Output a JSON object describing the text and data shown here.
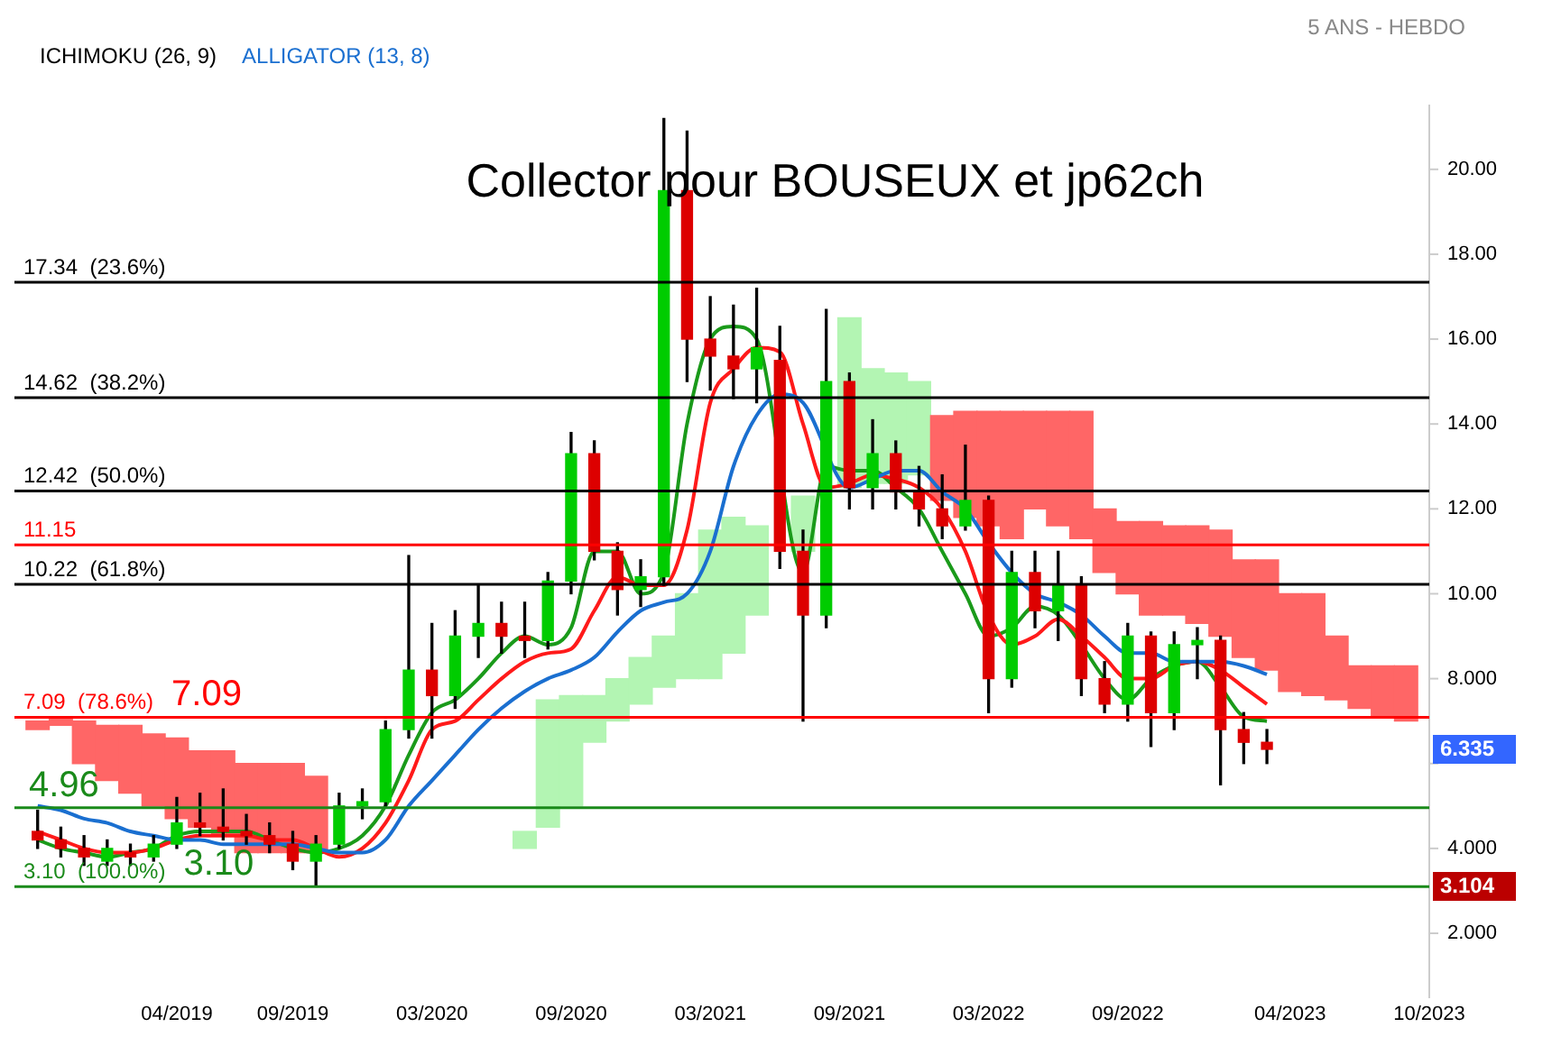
{
  "chart_data": {
    "type": "candlestick",
    "title": "Collector pour BOUSEUX et jp62ch",
    "subtitle": "5 ANS - HEBDO",
    "legend": "top left",
    "marker": "none",
    "annotations": [
      "ICHIMOKU (26, 9)",
      "6.335",
      "3.104",
      {
        "text": "7.09",
        "y": 7.09
      },
      {
        "text": "4.96",
        "y": 4.96
      },
      {
        "text": "3.10",
        "y": 3.1
      }
    ],
    "x": [
      "2018-10",
      "2018-11",
      "2018-12",
      "2019-01",
      "2019-02",
      "2019-03",
      "2019-04",
      "2019-05",
      "2019-06",
      "2019-07",
      "2019-08",
      "2019-09",
      "2019-10",
      "2019-11",
      "2019-12",
      "2020-01",
      "2020-02",
      "2020-03",
      "2020-04",
      "2020-05",
      "2020-06",
      "2020-07",
      "2020-08",
      "2020-09",
      "2020-10",
      "2020-11",
      "2020-12",
      "2021-01",
      "2021-02",
      "2021-03",
      "2021-04",
      "2021-05",
      "2021-06",
      "2021-07",
      "2021-08",
      "2021-09",
      "2021-10",
      "2021-11",
      "2021-12",
      "2022-01",
      "2022-02",
      "2022-03",
      "2022-04",
      "2022-05",
      "2022-06",
      "2022-07",
      "2022-08",
      "2022-09",
      "2022-10",
      "2022-11",
      "2022-12",
      "2023-01",
      "2023-02",
      "2023-03",
      "2023-04",
      "2023-05",
      "2023-06",
      "2023-07",
      "2023-08",
      "2023-09"
    ],
    "ohlc": [
      [
        4.4,
        4.9,
        4.0,
        4.2
      ],
      [
        4.2,
        4.5,
        3.8,
        4.0
      ],
      [
        4.0,
        4.3,
        3.6,
        3.8
      ],
      [
        3.7,
        4.2,
        3.6,
        4.0
      ],
      [
        3.9,
        4.1,
        3.6,
        3.8
      ],
      [
        3.8,
        4.3,
        3.7,
        4.1
      ],
      [
        4.1,
        5.2,
        4.0,
        4.6
      ],
      [
        4.6,
        5.3,
        4.3,
        4.5
      ],
      [
        4.5,
        5.4,
        4.2,
        4.4
      ],
      [
        4.4,
        4.8,
        4.1,
        4.3
      ],
      [
        4.3,
        4.6,
        3.9,
        4.1
      ],
      [
        4.1,
        4.4,
        3.5,
        3.7
      ],
      [
        3.7,
        4.3,
        3.104,
        4.1
      ],
      [
        4.1,
        5.3,
        4.0,
        5.0
      ],
      [
        5.0,
        5.4,
        4.7,
        5.1
      ],
      [
        5.1,
        7.0,
        5.0,
        6.8
      ],
      [
        6.8,
        10.9,
        6.6,
        8.2
      ],
      [
        8.2,
        9.3,
        6.6,
        7.6
      ],
      [
        7.6,
        9.6,
        7.3,
        9.0
      ],
      [
        9.0,
        10.2,
        8.5,
        9.3
      ],
      [
        9.3,
        9.8,
        8.6,
        9.0
      ],
      [
        9.0,
        9.8,
        8.5,
        8.9
      ],
      [
        8.9,
        10.5,
        8.7,
        10.3
      ],
      [
        10.3,
        13.8,
        10.0,
        13.3
      ],
      [
        13.3,
        13.6,
        10.8,
        11.0
      ],
      [
        11.0,
        11.2,
        9.5,
        10.1
      ],
      [
        10.1,
        10.8,
        9.7,
        10.4
      ],
      [
        10.4,
        21.2,
        10.2,
        19.5
      ],
      [
        19.5,
        20.9,
        15.0,
        16.0
      ],
      [
        16.0,
        17.0,
        14.8,
        15.6
      ],
      [
        15.6,
        16.8,
        14.6,
        15.3
      ],
      [
        15.3,
        17.2,
        14.5,
        15.8
      ],
      [
        15.5,
        16.3,
        10.6,
        11.0
      ],
      [
        11.0,
        11.5,
        7.0,
        9.5
      ],
      [
        9.5,
        16.7,
        9.2,
        15.0
      ],
      [
        15.0,
        15.2,
        12.0,
        12.5
      ],
      [
        12.5,
        14.1,
        12.0,
        13.3
      ],
      [
        13.3,
        13.6,
        12.0,
        12.4
      ],
      [
        12.4,
        13.0,
        11.6,
        12.0
      ],
      [
        12.0,
        12.8,
        11.3,
        11.6
      ],
      [
        11.6,
        13.5,
        11.5,
        12.2
      ],
      [
        12.2,
        12.3,
        7.2,
        8.0
      ],
      [
        8.0,
        11.0,
        7.8,
        10.5
      ],
      [
        10.5,
        11.0,
        9.2,
        9.6
      ],
      [
        9.6,
        11.0,
        8.9,
        10.2
      ],
      [
        10.2,
        10.4,
        7.6,
        8.0
      ],
      [
        8.0,
        8.4,
        7.2,
        7.4
      ],
      [
        7.4,
        9.3,
        7.0,
        9.0
      ],
      [
        9.0,
        9.1,
        6.4,
        7.2
      ],
      [
        7.2,
        9.1,
        6.8,
        8.8
      ],
      [
        8.8,
        9.2,
        8.0,
        8.9
      ],
      [
        8.9,
        9.0,
        5.5,
        6.8
      ],
      [
        6.8,
        7.2,
        6.0,
        6.5
      ],
      [
        6.5,
        6.8,
        6.0,
        6.335
      ],
      null,
      null,
      null,
      null,
      null,
      null
    ],
    "series": [
      {
        "type": "bar",
        "color": "#ff6666",
        "base": [
          6.8,
          6.9,
          6.0,
          5.6,
          5.3,
          5.0,
          4.7,
          4.5,
          4.3,
          3.9,
          3.9,
          3.9,
          3.9,
          null,
          null,
          null,
          null,
          null,
          null,
          null,
          null,
          null,
          null,
          null,
          null,
          null,
          null,
          null,
          null,
          null,
          null,
          null,
          null,
          null,
          null,
          null,
          null,
          null,
          null,
          12.2,
          11.8,
          11.6,
          11.3,
          12.0,
          11.6,
          11.3,
          10.5,
          10.0,
          9.5,
          9.5,
          9.3,
          9.0,
          8.5,
          8.2,
          7.7,
          7.6,
          7.5,
          7.3,
          7.1,
          7.0
        ],
        "values": [
          0.2,
          0.2,
          1.0,
          1.3,
          1.6,
          1.7,
          1.9,
          1.8,
          2.0,
          2.1,
          2.1,
          2.1,
          1.8,
          null,
          null,
          null,
          null,
          null,
          null,
          null,
          null,
          null,
          null,
          null,
          null,
          null,
          null,
          null,
          null,
          null,
          null,
          null,
          null,
          null,
          null,
          null,
          null,
          null,
          null,
          2.0,
          2.5,
          2.7,
          3.0,
          2.3,
          2.7,
          3.0,
          1.5,
          1.7,
          2.2,
          2.1,
          2.3,
          2.5,
          2.3,
          2.6,
          2.3,
          2.4,
          1.5,
          1.0,
          1.2,
          1.3
        ]
      },
      {
        "type": "bar",
        "color": "#b3f5b3",
        "base": [
          null,
          null,
          null,
          null,
          null,
          null,
          null,
          null,
          null,
          null,
          null,
          null,
          null,
          null,
          null,
          null,
          null,
          null,
          null,
          null,
          null,
          4.0,
          4.5,
          5.0,
          6.5,
          7.0,
          7.4,
          7.8,
          8.0,
          8.0,
          8.6,
          9.5,
          null,
          11.0,
          null,
          12.5,
          12.6,
          12.6,
          12.8,
          null,
          null,
          null,
          null,
          null,
          null,
          null,
          null,
          null,
          null,
          null,
          null,
          null,
          null,
          null,
          null,
          null,
          null,
          null,
          null,
          null
        ],
        "values": [
          null,
          null,
          null,
          null,
          null,
          null,
          null,
          null,
          null,
          null,
          null,
          null,
          null,
          null,
          null,
          null,
          null,
          null,
          null,
          null,
          null,
          0.4,
          3.0,
          2.6,
          1.1,
          1.0,
          1.1,
          1.2,
          2.0,
          3.5,
          3.2,
          2.1,
          null,
          1.3,
          null,
          4.0,
          2.7,
          2.6,
          2.2,
          null,
          null,
          null,
          null,
          null,
          null,
          null,
          null,
          null,
          null,
          null,
          null,
          null,
          null,
          null,
          null,
          null,
          null,
          null,
          null,
          null
        ]
      },
      {
        "type": "line",
        "name": "ALLIGATOR (13, 8)",
        "color": "#1a6fd0",
        "values": [
          5.0,
          4.9,
          4.7,
          4.6,
          4.4,
          4.3,
          4.2,
          4.2,
          4.1,
          4.1,
          4.1,
          4.1,
          4.0,
          3.9,
          3.9,
          4.2,
          5.0,
          5.6,
          6.2,
          6.8,
          7.3,
          7.7,
          8.0,
          8.2,
          8.5,
          9.1,
          9.6,
          9.8,
          10.0,
          11.0,
          13.0,
          14.2,
          14.7,
          14.5,
          null,
          12.5,
          12.7,
          12.9,
          12.9,
          12.4,
          12.0,
          11.2,
          10.5,
          10.0,
          9.8,
          9.5,
          9.0,
          8.6,
          8.6,
          8.4,
          8.4,
          8.4,
          8.3,
          8.1,
          null,
          null,
          null,
          null,
          null,
          null
        ]
      },
      {
        "type": "line",
        "color": "#ff1a1a",
        "values": [
          4.4,
          4.2,
          4.0,
          3.9,
          3.9,
          4.0,
          4.2,
          4.3,
          4.3,
          4.3,
          4.2,
          4.2,
          4.0,
          3.8,
          4.0,
          4.6,
          5.6,
          6.8,
          7.0,
          7.5,
          8.0,
          8.4,
          8.6,
          8.7,
          9.6,
          10.4,
          10.2,
          10.2,
          11.5,
          14.5,
          15.3,
          15.8,
          15.7,
          14.0,
          12.5,
          12.6,
          12.8,
          12.7,
          12.5,
          12.0,
          11.0,
          9.5,
          8.8,
          9.0,
          9.4,
          9.0,
          8.5,
          8.0,
          8.0,
          8.3,
          8.4,
          8.2,
          7.8,
          7.4,
          null,
          null,
          null,
          null,
          null,
          null
        ]
      },
      {
        "type": "line",
        "color": "#1a9a1a",
        "values": [
          4.2,
          4.0,
          3.9,
          3.8,
          3.9,
          4.0,
          4.3,
          4.4,
          4.4,
          4.4,
          4.2,
          4.0,
          3.9,
          4.0,
          4.3,
          5.0,
          6.2,
          7.2,
          7.5,
          8.0,
          8.6,
          9.0,
          8.8,
          9.2,
          11.0,
          11.0,
          10.0,
          10.5,
          14.0,
          16.0,
          16.3,
          16.0,
          null,
          10.5,
          13.0,
          12.9,
          12.9,
          12.5,
          12.0,
          11.0,
          10.0,
          9.0,
          9.2,
          9.7,
          9.5,
          8.8,
          8.0,
          7.5,
          8.0,
          8.3,
          8.4,
          7.8,
          7.1,
          7.0,
          null,
          null,
          null,
          null,
          null,
          null
        ]
      }
    ],
    "ref_lines": [
      {
        "axis": "y",
        "value": 17.34,
        "label": "17.34  (23.6%)",
        "color": "#000000"
      },
      {
        "axis": "y",
        "value": 14.62,
        "label": "14.62  (38.2%)",
        "color": "#000000"
      },
      {
        "axis": "y",
        "value": 12.42,
        "label": "12.42  (50.0%)",
        "color": "#000000"
      },
      {
        "axis": "y",
        "value": 10.22,
        "label": "10.22  (61.8%)",
        "color": "#000000"
      },
      {
        "axis": "y",
        "value": 11.15,
        "label": "11.15",
        "color": "#ff0000"
      },
      {
        "axis": "y",
        "value": 7.09,
        "label": "7.09  (78.6%)",
        "color": "#ff0000"
      },
      {
        "axis": "y",
        "value": 4.96,
        "color": "#1a8a1a"
      },
      {
        "axis": "y",
        "value": 3.1,
        "label": "3.10  (100.0%)",
        "color": "#1a8a1a"
      }
    ],
    "xlim": [
      "2018-09",
      "2023-10"
    ],
    "xticks": [
      {
        "value": "2019-04",
        "label": "04/2019"
      },
      {
        "value": "2019-09",
        "label": "09/2019"
      },
      {
        "value": "2020-03",
        "label": "03/2020"
      },
      {
        "value": "2020-09",
        "label": "09/2020"
      },
      {
        "value": "2021-03",
        "label": "03/2021"
      },
      {
        "value": "2021-09",
        "label": "09/2021"
      },
      {
        "value": "2022-03",
        "label": "03/2022"
      },
      {
        "value": "2022-09",
        "label": "09/2022"
      },
      {
        "value": "2023-04",
        "label": "04/2023"
      },
      {
        "value": "2023-10",
        "label": "10/2023"
      }
    ],
    "ylim": [
      0.5,
      21.5
    ],
    "yticks": [
      {
        "value": 2,
        "label": "2.000"
      },
      {
        "value": 4,
        "label": "4.000"
      },
      {
        "value": 6,
        "label": null
      },
      {
        "value": 8,
        "label": "8.000"
      },
      {
        "value": 10,
        "label": "10.00"
      },
      {
        "value": 12,
        "label": "12.00"
      },
      {
        "value": 14,
        "label": "14.00"
      },
      {
        "value": 16,
        "label": "16.00"
      },
      {
        "value": 18,
        "label": "18.00"
      },
      {
        "value": 20,
        "label": "20.00"
      }
    ]
  }
}
